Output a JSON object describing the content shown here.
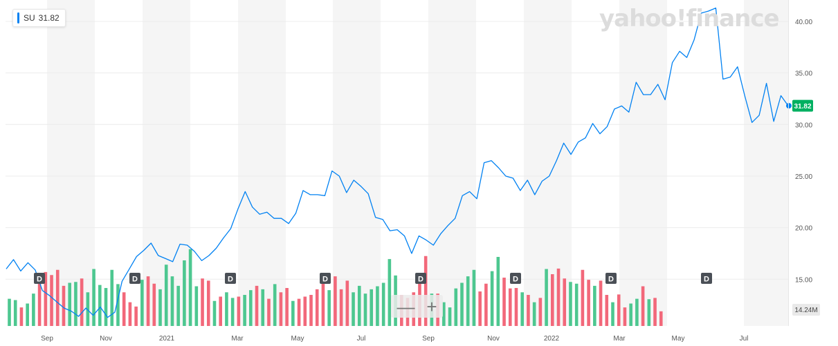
{
  "legend": {
    "symbol": "SU",
    "price": "31.82",
    "color": "#0081f2"
  },
  "watermark": "yahoo!finance",
  "price_badge": {
    "value": "31.82",
    "color": "#00b061"
  },
  "volume_badge": "14.24M",
  "dividend_marker": "D",
  "zoom": {
    "minus": "—",
    "plus": "+"
  },
  "colors": {
    "line": "#0081f2",
    "up": "#4dc790",
    "down": "#f2687a",
    "band": "#f5f5f5",
    "grid": "#ececec"
  },
  "chart_data": {
    "type": "line",
    "x_axis": {
      "labels": [
        "Sep",
        "Nov",
        "2021",
        "Mar",
        "May",
        "Jul",
        "Sep",
        "Nov",
        "2022",
        "Mar",
        "May",
        "Jul"
      ]
    },
    "y_axis": {
      "side": "right",
      "ticks": [
        15,
        20,
        25,
        30,
        35,
        40
      ],
      "tick_labels": [
        "15.00",
        "20.00",
        "25.00",
        "30.00",
        "35.00",
        "40.00"
      ],
      "range": [
        13.7,
        42.2
      ]
    },
    "price": [
      16.0,
      16.9,
      15.8,
      16.6,
      15.9,
      13.9,
      13.4,
      12.8,
      12.2,
      11.9,
      11.4,
      12.2,
      11.5,
      12.3,
      11.3,
      11.8,
      14.8,
      16.0,
      17.2,
      17.8,
      18.5,
      17.3,
      17.0,
      16.7,
      18.4,
      18.3,
      17.7,
      16.8,
      17.3,
      18.0,
      19.0,
      19.9,
      21.8,
      23.5,
      22.0,
      21.3,
      21.5,
      20.9,
      20.9,
      20.4,
      21.4,
      23.6,
      23.2,
      23.2,
      23.1,
      25.5,
      25.0,
      23.4,
      24.6,
      24.0,
      23.3,
      21.0,
      20.8,
      19.7,
      19.8,
      19.2,
      17.5,
      19.2,
      18.8,
      18.3,
      19.4,
      20.2,
      20.9,
      23.1,
      23.5,
      22.8,
      26.3,
      26.5,
      25.8,
      25.0,
      24.8,
      23.6,
      24.6,
      23.2,
      24.5,
      25.0,
      26.5,
      28.2,
      27.1,
      28.3,
      28.7,
      30.1,
      29.1,
      29.8,
      31.5,
      31.8,
      31.2,
      34.1,
      32.9,
      32.9,
      33.9,
      32.4,
      36.0,
      37.1,
      36.5,
      38.2,
      40.8,
      41.0,
      41.3,
      34.4,
      34.6,
      35.6,
      32.8,
      30.2,
      30.9,
      34.0,
      30.3,
      32.8,
      31.82
    ],
    "volume": [
      {
        "v": 0.63,
        "up": true
      },
      {
        "v": 0.6,
        "up": true
      },
      {
        "v": 0.43,
        "up": false
      },
      {
        "v": 0.52,
        "up": true
      },
      {
        "v": 0.75,
        "up": true
      },
      {
        "v": 0.98,
        "up": false
      },
      {
        "v": 1.25,
        "up": false
      },
      {
        "v": 1.18,
        "up": false
      },
      {
        "v": 1.3,
        "up": false
      },
      {
        "v": 0.93,
        "up": false
      },
      {
        "v": 1.0,
        "up": true
      },
      {
        "v": 1.02,
        "up": true
      },
      {
        "v": 1.1,
        "up": false
      },
      {
        "v": 0.78,
        "up": true
      },
      {
        "v": 1.32,
        "up": true
      },
      {
        "v": 0.95,
        "up": true
      },
      {
        "v": 0.88,
        "up": true
      },
      {
        "v": 1.3,
        "up": true
      },
      {
        "v": 0.97,
        "up": true
      },
      {
        "v": 0.78,
        "up": false
      },
      {
        "v": 0.55,
        "up": false
      },
      {
        "v": 0.45,
        "up": false
      },
      {
        "v": 1.07,
        "up": true
      },
      {
        "v": 1.15,
        "up": false
      },
      {
        "v": 0.98,
        "up": false
      },
      {
        "v": 0.85,
        "up": true
      },
      {
        "v": 1.42,
        "up": true
      },
      {
        "v": 1.15,
        "up": true
      },
      {
        "v": 0.93,
        "up": true
      },
      {
        "v": 1.52,
        "up": true
      },
      {
        "v": 1.78,
        "up": true
      },
      {
        "v": 0.92,
        "up": true
      },
      {
        "v": 1.1,
        "up": false
      },
      {
        "v": 1.05,
        "up": false
      },
      {
        "v": 0.58,
        "up": true
      },
      {
        "v": 0.68,
        "up": false
      },
      {
        "v": 0.78,
        "up": true
      },
      {
        "v": 0.65,
        "up": true
      },
      {
        "v": 0.68,
        "up": false
      },
      {
        "v": 0.72,
        "up": true
      },
      {
        "v": 0.83,
        "up": true
      },
      {
        "v": 0.93,
        "up": false
      },
      {
        "v": 0.85,
        "up": true
      },
      {
        "v": 0.63,
        "up": false
      },
      {
        "v": 0.97,
        "up": true
      },
      {
        "v": 0.78,
        "up": false
      },
      {
        "v": 0.88,
        "up": false
      },
      {
        "v": 0.58,
        "up": true
      },
      {
        "v": 0.63,
        "up": false
      },
      {
        "v": 0.68,
        "up": false
      },
      {
        "v": 0.72,
        "up": false
      },
      {
        "v": 0.85,
        "up": false
      },
      {
        "v": 1.23,
        "up": false
      },
      {
        "v": 0.83,
        "up": true
      },
      {
        "v": 1.15,
        "up": false
      },
      {
        "v": 0.85,
        "up": false
      },
      {
        "v": 1.05,
        "up": false
      },
      {
        "v": 0.78,
        "up": true
      },
      {
        "v": 0.93,
        "up": true
      },
      {
        "v": 0.75,
        "up": true
      },
      {
        "v": 0.85,
        "up": true
      },
      {
        "v": 0.92,
        "up": true
      },
      {
        "v": 1.0,
        "up": true
      },
      {
        "v": 1.55,
        "up": true
      },
      {
        "v": 1.17,
        "up": true
      },
      {
        "v": 0.72,
        "up": false
      },
      {
        "v": 0.65,
        "up": false
      },
      {
        "v": 0.78,
        "up": false
      },
      {
        "v": 1.0,
        "up": false
      },
      {
        "v": 1.62,
        "up": false
      },
      {
        "v": 0.75,
        "up": true
      },
      {
        "v": 0.75,
        "up": false
      },
      {
        "v": 0.55,
        "up": true
      },
      {
        "v": 0.43,
        "up": true
      },
      {
        "v": 0.87,
        "up": true
      },
      {
        "v": 1.0,
        "up": true
      },
      {
        "v": 1.15,
        "up": true
      },
      {
        "v": 1.3,
        "up": true
      },
      {
        "v": 0.8,
        "up": false
      },
      {
        "v": 0.98,
        "up": false
      },
      {
        "v": 1.27,
        "up": true
      },
      {
        "v": 1.6,
        "up": true
      },
      {
        "v": 1.12,
        "up": false
      },
      {
        "v": 0.87,
        "up": false
      },
      {
        "v": 0.88,
        "up": false
      },
      {
        "v": 0.78,
        "up": true
      },
      {
        "v": 0.72,
        "up": false
      },
      {
        "v": 0.55,
        "up": true
      },
      {
        "v": 0.65,
        "up": false
      },
      {
        "v": 1.32,
        "up": true
      },
      {
        "v": 1.2,
        "up": false
      },
      {
        "v": 1.33,
        "up": false
      },
      {
        "v": 1.1,
        "up": false
      },
      {
        "v": 1.02,
        "up": true
      },
      {
        "v": 0.98,
        "up": true
      },
      {
        "v": 1.3,
        "up": false
      },
      {
        "v": 1.07,
        "up": false
      },
      {
        "v": 0.93,
        "up": true
      },
      {
        "v": 1.05,
        "up": false
      },
      {
        "v": 0.72,
        "up": false
      },
      {
        "v": 0.55,
        "up": true
      },
      {
        "v": 0.73,
        "up": false
      },
      {
        "v": 0.43,
        "up": false
      },
      {
        "v": 0.52,
        "up": true
      },
      {
        "v": 0.63,
        "up": true
      },
      {
        "v": 0.92,
        "up": false
      },
      {
        "v": 0.62,
        "up": true
      },
      {
        "v": 0.65,
        "up": false
      },
      {
        "v": 0.34,
        "up": false
      }
    ]
  }
}
